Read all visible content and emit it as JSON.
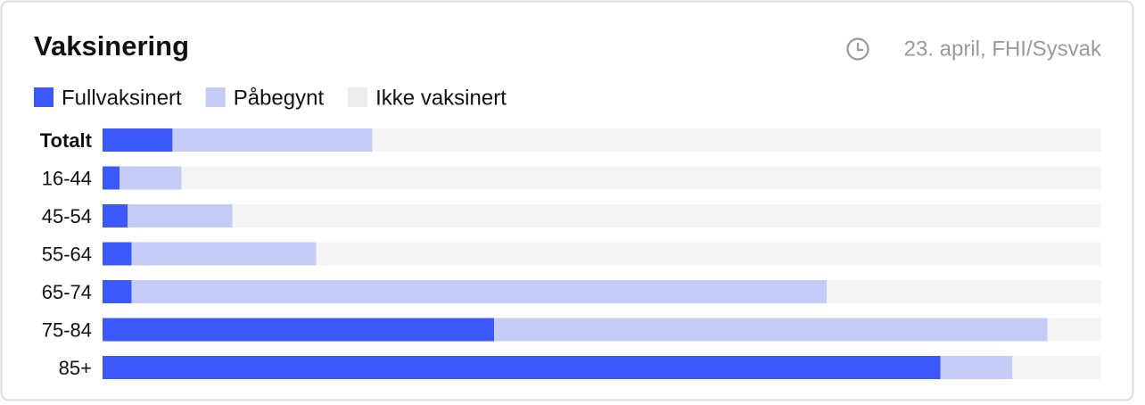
{
  "chart_data": {
    "type": "stacked-barh",
    "title": "Vaksinering",
    "source": "23. april, FHI/Sysvak",
    "categories": [
      "Totalt",
      "16-44",
      "45-54",
      "55-64",
      "65-74",
      "75-84",
      "85+"
    ],
    "series": [
      {
        "name": "Fullvaksinert",
        "color": "#3b59fb",
        "values": [
          7.0,
          1.7,
          2.5,
          2.9,
          2.9,
          39.2,
          83.9
        ]
      },
      {
        "name": "Påbegynt",
        "color": "#c3cbf6",
        "values": [
          20.0,
          6.2,
          10.5,
          18.5,
          69.6,
          55.4,
          7.2
        ]
      },
      {
        "name": "Ikke vaksinert",
        "color": "#f4f4f4",
        "values": [
          73.0,
          92.1,
          87.0,
          78.6,
          27.5,
          5.4,
          8.9
        ]
      }
    ],
    "xlim": [
      0,
      100
    ]
  }
}
